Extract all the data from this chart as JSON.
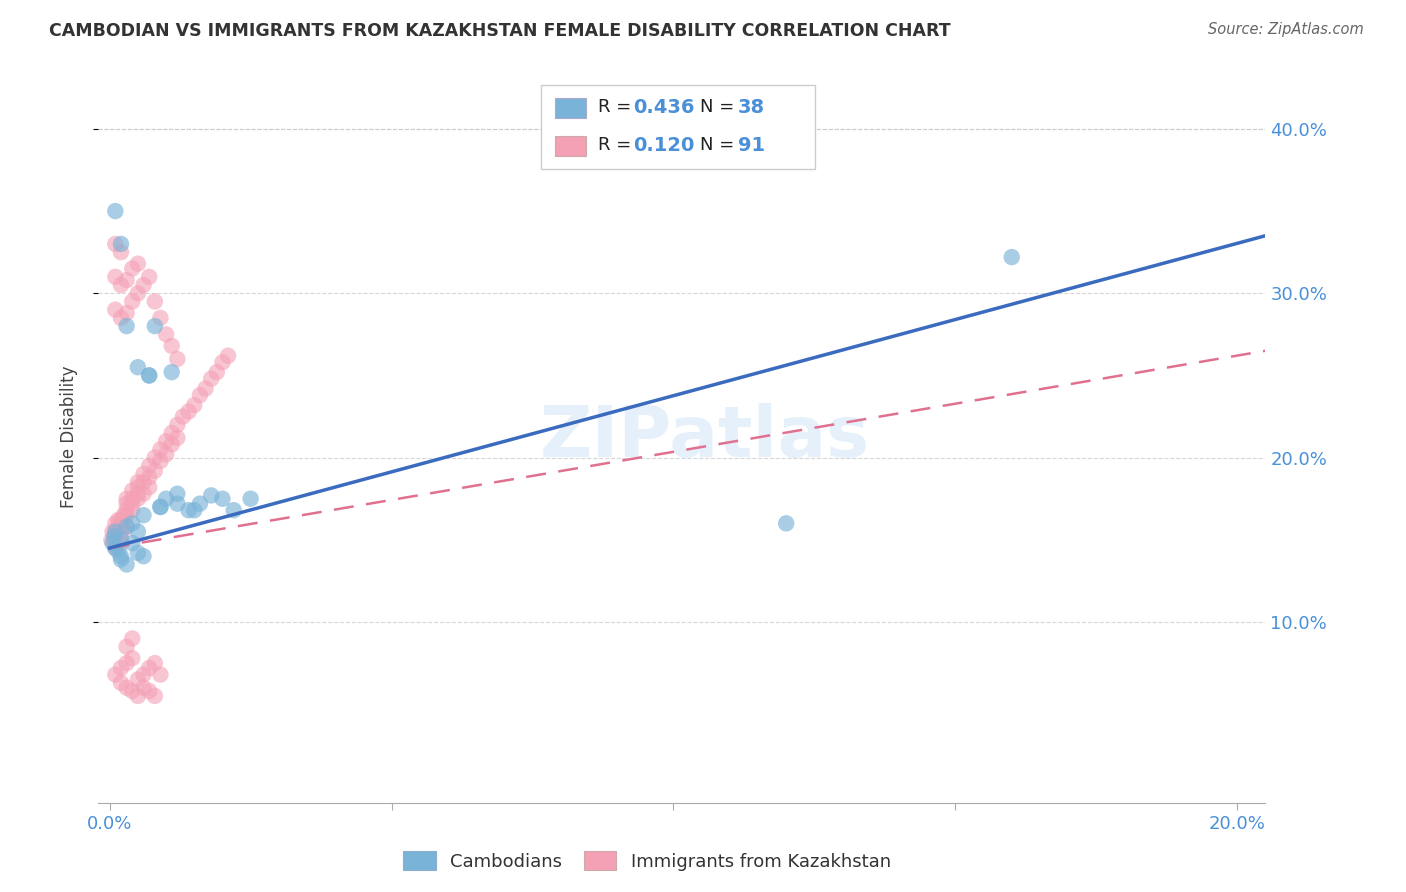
{
  "title": "CAMBODIAN VS IMMIGRANTS FROM KAZAKHSTAN FEMALE DISABILITY CORRELATION CHART",
  "source": "Source: ZipAtlas.com",
  "ylabel": "Female Disability",
  "watermark": "ZIPatlas",
  "xlim": [
    -0.002,
    0.205
  ],
  "ylim": [
    -0.01,
    0.435
  ],
  "xtick_vals": [
    0.0,
    0.05,
    0.1,
    0.15,
    0.2
  ],
  "xtick_labels": [
    "0.0%",
    "",
    "",
    "",
    "20.0%"
  ],
  "ytick_vals": [
    0.1,
    0.2,
    0.3,
    0.4
  ],
  "ytick_labels": [
    "10.0%",
    "20.0%",
    "30.0%",
    "40.0%"
  ],
  "series1_color": "#7ab3d8",
  "series2_color": "#f4a0b5",
  "line1_color": "#3a6bbf",
  "line2_color": "#e07090",
  "legend_r1": "0.436",
  "legend_n1": "38",
  "legend_r2": "0.120",
  "legend_n2": "91",
  "blue_line_x": [
    0.0,
    0.205
  ],
  "blue_line_y": [
    0.145,
    0.335
  ],
  "pink_line_x": [
    0.0,
    0.205
  ],
  "pink_line_y": [
    0.145,
    0.265
  ],
  "label1": "Cambodians",
  "label2": "Immigrants from Kazakhstan",
  "cambodians_x": [
    0.0005,
    0.0008,
    0.001,
    0.001,
    0.0015,
    0.002,
    0.002,
    0.002,
    0.003,
    0.003,
    0.004,
    0.004,
    0.005,
    0.005,
    0.006,
    0.006,
    0.007,
    0.008,
    0.009,
    0.01,
    0.011,
    0.012,
    0.014,
    0.016,
    0.018,
    0.02,
    0.022,
    0.025,
    0.001,
    0.002,
    0.003,
    0.005,
    0.007,
    0.009,
    0.012,
    0.015,
    0.12,
    0.16
  ],
  "cambodians_y": [
    0.148,
    0.152,
    0.145,
    0.155,
    0.143,
    0.15,
    0.14,
    0.138,
    0.135,
    0.158,
    0.148,
    0.16,
    0.142,
    0.155,
    0.14,
    0.165,
    0.25,
    0.28,
    0.17,
    0.175,
    0.252,
    0.178,
    0.168,
    0.172,
    0.177,
    0.175,
    0.168,
    0.175,
    0.35,
    0.33,
    0.28,
    0.255,
    0.25,
    0.17,
    0.172,
    0.168,
    0.16,
    0.322
  ],
  "kazakhstan_x": [
    0.0003,
    0.0005,
    0.0008,
    0.001,
    0.001,
    0.001,
    0.001,
    0.001,
    0.0015,
    0.0015,
    0.002,
    0.002,
    0.002,
    0.002,
    0.002,
    0.0025,
    0.003,
    0.003,
    0.003,
    0.003,
    0.003,
    0.004,
    0.004,
    0.004,
    0.004,
    0.005,
    0.005,
    0.005,
    0.005,
    0.006,
    0.006,
    0.006,
    0.007,
    0.007,
    0.007,
    0.008,
    0.008,
    0.009,
    0.009,
    0.01,
    0.01,
    0.011,
    0.011,
    0.012,
    0.012,
    0.013,
    0.014,
    0.015,
    0.016,
    0.017,
    0.018,
    0.019,
    0.02,
    0.021,
    0.001,
    0.001,
    0.001,
    0.002,
    0.002,
    0.002,
    0.003,
    0.003,
    0.004,
    0.004,
    0.005,
    0.005,
    0.006,
    0.007,
    0.008,
    0.009,
    0.01,
    0.011,
    0.012,
    0.001,
    0.002,
    0.003,
    0.004,
    0.005,
    0.006,
    0.007,
    0.008,
    0.009,
    0.003,
    0.004,
    0.002,
    0.003,
    0.004,
    0.005,
    0.006,
    0.007,
    0.008
  ],
  "kazakhstan_y": [
    0.15,
    0.155,
    0.148,
    0.145,
    0.155,
    0.16,
    0.148,
    0.152,
    0.162,
    0.158,
    0.155,
    0.162,
    0.158,
    0.152,
    0.148,
    0.165,
    0.168,
    0.172,
    0.165,
    0.158,
    0.175,
    0.18,
    0.172,
    0.168,
    0.175,
    0.185,
    0.178,
    0.182,
    0.175,
    0.19,
    0.185,
    0.178,
    0.195,
    0.188,
    0.182,
    0.2,
    0.192,
    0.205,
    0.198,
    0.21,
    0.202,
    0.215,
    0.208,
    0.22,
    0.212,
    0.225,
    0.228,
    0.232,
    0.238,
    0.242,
    0.248,
    0.252,
    0.258,
    0.262,
    0.29,
    0.31,
    0.33,
    0.285,
    0.305,
    0.325,
    0.288,
    0.308,
    0.295,
    0.315,
    0.3,
    0.318,
    0.305,
    0.31,
    0.295,
    0.285,
    0.275,
    0.268,
    0.26,
    0.068,
    0.072,
    0.075,
    0.078,
    0.065,
    0.068,
    0.072,
    0.075,
    0.068,
    0.085,
    0.09,
    0.063,
    0.06,
    0.058,
    0.055,
    0.06,
    0.058,
    0.055
  ]
}
